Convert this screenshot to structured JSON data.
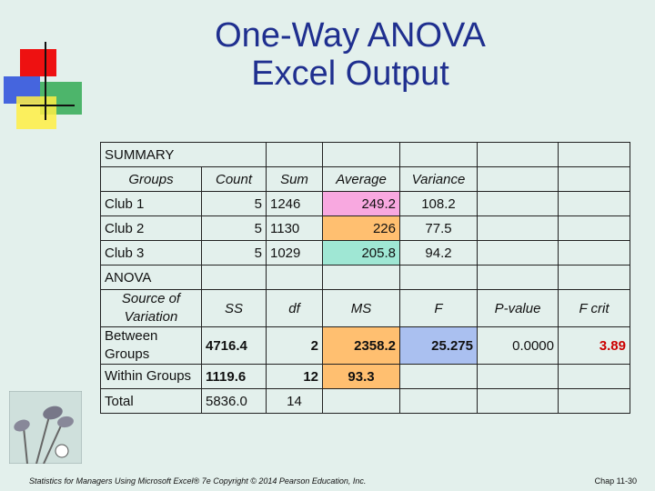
{
  "title_line1": "One-Way ANOVA",
  "title_line2": "Excel Output",
  "summary": {
    "label": "SUMMARY",
    "headers": [
      "Groups",
      "Count",
      "Sum",
      "Average",
      "Variance"
    ],
    "rows": [
      {
        "group": "Club 1",
        "count": "5",
        "sum": "1246",
        "average": "249.2",
        "variance": "108.2"
      },
      {
        "group": "Club 2",
        "count": "5",
        "sum": "1130",
        "average": "226",
        "variance": "77.5"
      },
      {
        "group": "Club 3",
        "count": "5",
        "sum": "1029",
        "average": "205.8",
        "variance": "94.2"
      }
    ],
    "average_colors": [
      "#f8a8e0",
      "#ffbf70",
      "#9fe7d4"
    ]
  },
  "anova": {
    "label": "ANOVA",
    "headers": [
      "Source of Variation",
      "SS",
      "df",
      "MS",
      "F",
      "P-value",
      "F crit"
    ],
    "rows": [
      {
        "source": "Between Groups",
        "ss": "4716.4",
        "df": "2",
        "ms": "2358.2",
        "f": "25.275",
        "p": "0.0000",
        "fcrit": "3.89"
      },
      {
        "source": "Within Groups",
        "ss": "1119.6",
        "df": "12",
        "ms": "93.3",
        "f": "",
        "p": "",
        "fcrit": ""
      },
      {
        "source": "Total",
        "ss": "5836.0",
        "df": "14",
        "ms": "",
        "f": "",
        "p": "",
        "fcrit": ""
      }
    ],
    "ms_highlight": "#ffbf70",
    "f_highlight": "#aac0f0",
    "fcrit_color": "#cc0000"
  },
  "footer_left": "Statistics for Managers Using Microsoft Excel® 7e Copyright © 2014 Pearson Education, Inc.",
  "footer_right": "Chap 11-30",
  "icons": [
    "slide-decoration-icon",
    "golf-clubs-icon"
  ]
}
